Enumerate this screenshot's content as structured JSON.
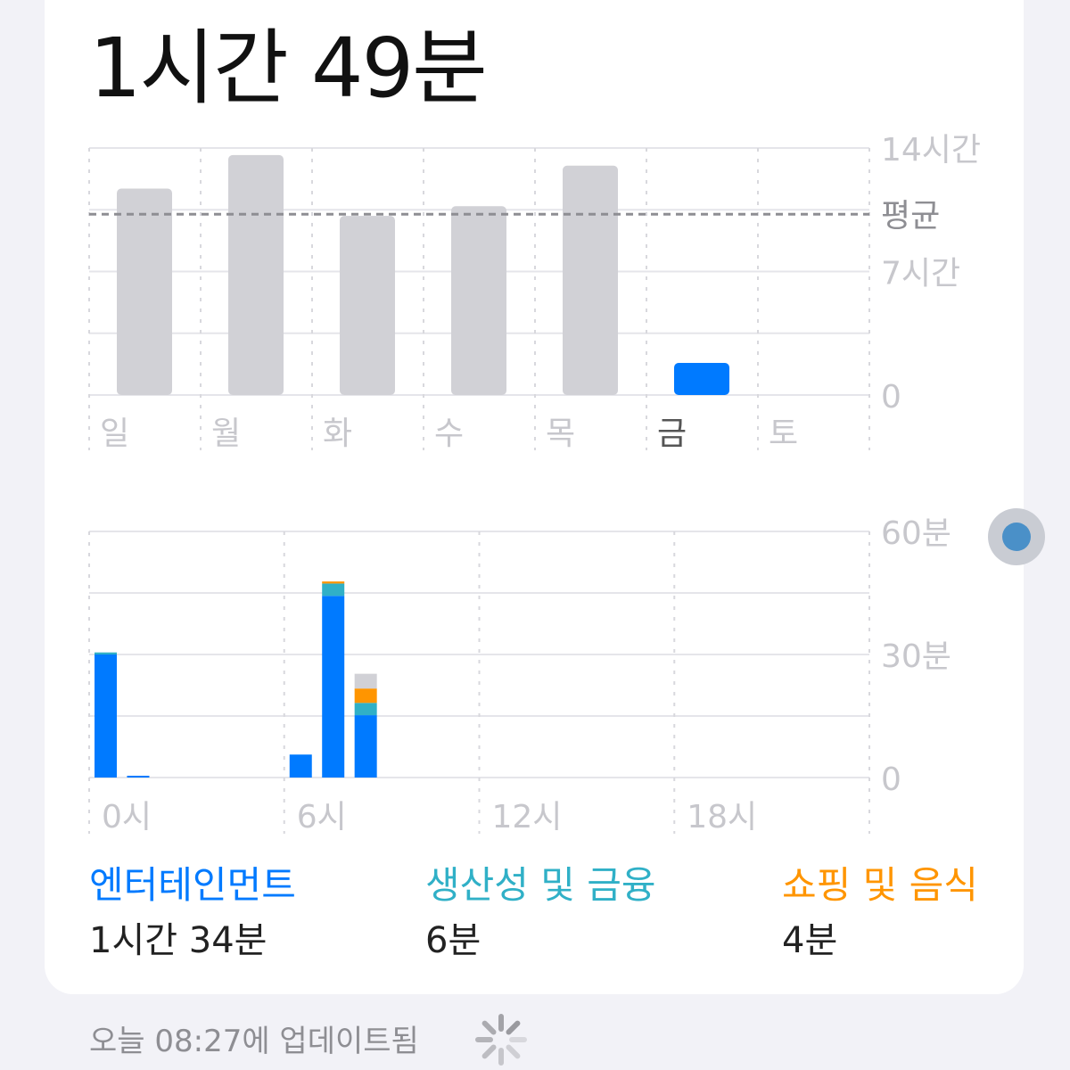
{
  "total_time": "1시간 49분",
  "colors": {
    "entertainment": "#007aff",
    "productivity": "#30b0c7",
    "shopping": "#ff9500",
    "other": "#d1d1d6",
    "past_days": "#d1d1d6"
  },
  "chart_data": [
    {
      "type": "bar",
      "categories": [
        "일",
        "월",
        "화",
        "수",
        "목",
        "금",
        "토"
      ],
      "values_hours": [
        11.7,
        13.6,
        10.15,
        10.7,
        13.0,
        1.82,
        0
      ],
      "highlight_index": 5,
      "average_hours": 10.25,
      "average_label": "평균",
      "ylim": [
        0,
        14
      ],
      "y_ticks": [
        {
          "v": 14,
          "label": "14시간"
        },
        {
          "v": 7,
          "label": "7시간"
        },
        {
          "v": 0,
          "label": "0"
        }
      ]
    },
    {
      "type": "bar",
      "stacked": true,
      "categories_hours": [
        0,
        1,
        6,
        7,
        8
      ],
      "series": [
        {
          "name": "엔터테인먼트",
          "values": [
            30,
            0.3,
            5.6,
            44.3,
            15.2
          ]
        },
        {
          "name": "생산성 및 금융",
          "values": [
            0.5,
            0,
            0,
            3,
            3
          ]
        },
        {
          "name": "쇼핑 및 음식",
          "values": [
            0,
            0,
            0,
            0.5,
            3.5
          ]
        },
        {
          "name": "",
          "values": [
            0,
            0,
            0,
            0,
            3.6
          ]
        }
      ],
      "ylim": [
        0,
        60
      ],
      "y_ticks": [
        {
          "v": 60,
          "label": "60분"
        },
        {
          "v": 30,
          "label": "30분"
        },
        {
          "v": 0,
          "label": "0"
        }
      ],
      "x_ticks": [
        {
          "v": 0,
          "label": "0시"
        },
        {
          "v": 6,
          "label": "6시"
        },
        {
          "v": 12,
          "label": "12시"
        },
        {
          "v": 18,
          "label": "18시"
        }
      ]
    }
  ],
  "legend": [
    {
      "label": "엔터테인먼트",
      "value": "1시간 34분",
      "color": "#007aff"
    },
    {
      "label": "생산성 및 금융",
      "value": "6분",
      "color": "#30b0c7"
    },
    {
      "label": "쇼핑 및 음식",
      "value": "4분",
      "color": "#ff9500"
    }
  ],
  "updated": "오늘 08:27에 업데이트됨"
}
